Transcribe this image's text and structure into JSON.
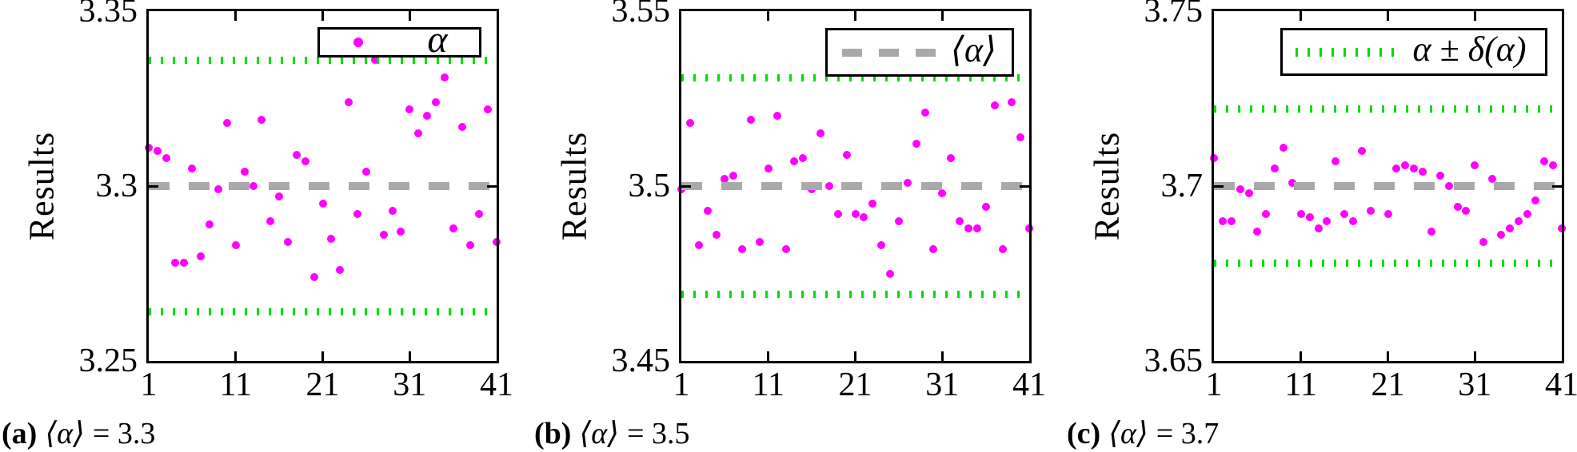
{
  "colors": {
    "points": "#ff00ff",
    "mean_line": "#a9a9a9",
    "bound_line": "#00dd00",
    "axis": "#000000",
    "background": "#ffffff"
  },
  "chart_data": [
    {
      "type": "scatter",
      "panel_id": "(a)",
      "caption_math": "⟨α⟩",
      "caption_value": "= 3.3",
      "ylabel": "Results",
      "legend_label": "α",
      "legend_sample": "magenta-dot-marker",
      "xlim": [
        1,
        41
      ],
      "ylim": [
        3.25,
        3.35
      ],
      "xticks": [
        {
          "v": 1,
          "label": "1"
        },
        {
          "v": 11,
          "label": "11"
        },
        {
          "v": 21,
          "label": "21"
        },
        {
          "v": 31,
          "label": "31"
        },
        {
          "v": 41,
          "label": "41"
        }
      ],
      "yticks": [
        {
          "v": 3.35,
          "label": "3.35"
        },
        {
          "v": 3.3,
          "label": "3.3"
        },
        {
          "v": 3.25,
          "label": "3.25"
        }
      ],
      "mean": 3.3,
      "upper_bound": 3.336,
      "lower_bound": 3.264,
      "grid": false,
      "legend_position": "upper right",
      "x": [
        1,
        2,
        3,
        4,
        5,
        6,
        7,
        8,
        9,
        10,
        11,
        12,
        13,
        14,
        15,
        16,
        17,
        18,
        19,
        20,
        21,
        22,
        23,
        24,
        25,
        26,
        27,
        28,
        29,
        30,
        31,
        32,
        33,
        34,
        35,
        36,
        37,
        38,
        39,
        40,
        41
      ],
      "y": [
        3.311,
        3.31,
        3.308,
        3.278,
        3.278,
        3.305,
        3.28,
        3.289,
        3.299,
        3.318,
        3.283,
        3.304,
        3.3,
        3.319,
        3.29,
        3.297,
        3.284,
        3.309,
        3.307,
        3.274,
        3.295,
        3.285,
        3.276,
        3.324,
        3.292,
        3.304,
        3.336,
        3.286,
        3.293,
        3.287,
        3.322,
        3.315,
        3.32,
        3.324,
        3.331,
        3.288,
        3.317,
        3.283,
        3.292,
        3.322,
        3.284
      ]
    },
    {
      "type": "scatter",
      "panel_id": "(b)",
      "caption_math": "⟨α⟩",
      "caption_value": "= 3.5",
      "ylabel": "Results",
      "legend_label": "⟨α⟩",
      "legend_sample": "gray-dashed-line",
      "xlim": [
        1,
        41
      ],
      "ylim": [
        3.45,
        3.55
      ],
      "xticks": [
        {
          "v": 1,
          "label": "1"
        },
        {
          "v": 11,
          "label": "11"
        },
        {
          "v": 21,
          "label": "21"
        },
        {
          "v": 31,
          "label": "31"
        },
        {
          "v": 41,
          "label": "41"
        }
      ],
      "yticks": [
        {
          "v": 3.55,
          "label": "3.55"
        },
        {
          "v": 3.5,
          "label": "3.5"
        },
        {
          "v": 3.45,
          "label": "3.45"
        }
      ],
      "mean": 3.5,
      "upper_bound": 3.531,
      "lower_bound": 3.469,
      "grid": false,
      "legend_position": "upper right",
      "x": [
        1,
        2,
        3,
        4,
        5,
        6,
        7,
        8,
        9,
        10,
        11,
        12,
        13,
        14,
        15,
        16,
        17,
        18,
        19,
        20,
        21,
        22,
        23,
        24,
        25,
        26,
        27,
        28,
        29,
        30,
        31,
        32,
        33,
        34,
        35,
        36,
        37,
        38,
        39,
        40,
        41
      ],
      "y": [
        3.499,
        3.518,
        3.483,
        3.493,
        3.486,
        3.502,
        3.503,
        3.482,
        3.519,
        3.484,
        3.505,
        3.52,
        3.482,
        3.507,
        3.508,
        3.499,
        3.515,
        3.5,
        3.492,
        3.509,
        3.492,
        3.491,
        3.495,
        3.483,
        3.475,
        3.49,
        3.501,
        3.512,
        3.521,
        3.482,
        3.498,
        3.508,
        3.49,
        3.488,
        3.488,
        3.494,
        3.523,
        3.482,
        3.524,
        3.514,
        3.488
      ]
    },
    {
      "type": "scatter",
      "panel_id": "(c)",
      "caption_math": "⟨α⟩",
      "caption_value": "= 3.7",
      "ylabel": "Results",
      "legend_label": "α ± δ(α)",
      "legend_sample": "green-dotted-line",
      "xlim": [
        1,
        41
      ],
      "ylim": [
        3.65,
        3.75
      ],
      "xticks": [
        {
          "v": 1,
          "label": "1"
        },
        {
          "v": 11,
          "label": "11"
        },
        {
          "v": 21,
          "label": "21"
        },
        {
          "v": 31,
          "label": "31"
        },
        {
          "v": 41,
          "label": "41"
        }
      ],
      "yticks": [
        {
          "v": 3.75,
          "label": "3.75"
        },
        {
          "v": 3.7,
          "label": "3.7"
        },
        {
          "v": 3.65,
          "label": "3.65"
        }
      ],
      "mean": 3.7,
      "upper_bound": 3.722,
      "lower_bound": 3.678,
      "grid": false,
      "legend_position": "upper right",
      "x": [
        1,
        2,
        3,
        4,
        5,
        6,
        7,
        8,
        9,
        10,
        11,
        12,
        13,
        14,
        15,
        16,
        17,
        18,
        19,
        20,
        21,
        22,
        23,
        24,
        25,
        26,
        27,
        28,
        29,
        30,
        31,
        32,
        33,
        34,
        35,
        36,
        37,
        38,
        39,
        40,
        41
      ],
      "y": [
        3.708,
        3.69,
        3.69,
        3.699,
        3.698,
        3.687,
        3.692,
        3.705,
        3.711,
        3.701,
        3.692,
        3.691,
        3.688,
        3.69,
        3.707,
        3.692,
        3.69,
        3.71,
        3.693,
        3.7,
        3.692,
        3.705,
        3.706,
        3.705,
        3.704,
        3.687,
        3.703,
        3.7,
        3.694,
        3.693,
        3.706,
        3.684,
        3.702,
        3.686,
        3.688,
        3.69,
        3.692,
        3.696,
        3.707,
        3.706,
        3.688
      ]
    }
  ]
}
